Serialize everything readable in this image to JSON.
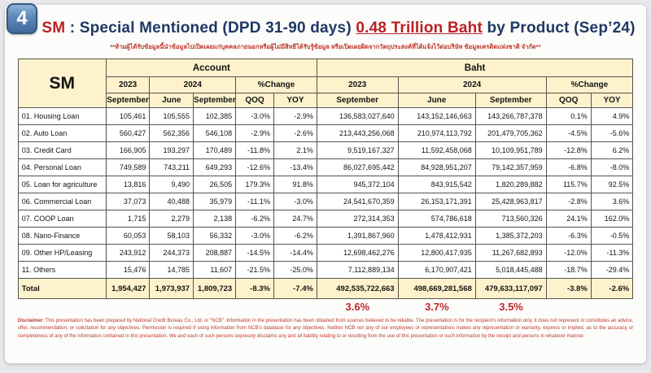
{
  "page": {
    "badge": "4",
    "title": {
      "prefix": "SM",
      "separator": " : ",
      "main": "Special Mentioned (DPD 31-90 days) ",
      "highlight": "0.48 Trillion Baht",
      "suffix": " by Product (Sep’24)"
    },
    "thai_notice": "**ห้ามผู้ได้รับข้อมูลนี้นำข้อมูลไปเปิดเผยแก่บุคคลภายนอกหรือผู้ไม่มีสิทธิได้รับรู้ข้อมูล หรือเปิดเผยผิดจากวัตถุประสงค์ที่ได้แจ้งไว้ต่อบริษัท ข้อมูลเครดิตแห่งชาติ จำกัด**"
  },
  "table": {
    "corner_label": "SM",
    "headers": {
      "account_group": "Account",
      "baht_group": "Baht",
      "y2023": "2023",
      "y2024": "2024",
      "pct_change": "%Change",
      "september": "September",
      "june": "June",
      "qoq": "QOQ",
      "yoy": "YOY"
    },
    "rows": [
      {
        "label": "01. Housing Loan",
        "account": [
          "105,461",
          "105,555",
          "102,385",
          "-3.0%",
          "-2.9%"
        ],
        "baht": [
          "136,583,027,640",
          "143,152,146,663",
          "143,266,787,378",
          "0.1%",
          "4.9%"
        ]
      },
      {
        "label": "02. Auto Loan",
        "account": [
          "560,427",
          "562,356",
          "546,108",
          "-2.9%",
          "-2.6%"
        ],
        "baht": [
          "213,443,256,068",
          "210,974,113,792",
          "201,479,705,362",
          "-4.5%",
          "-5.6%"
        ]
      },
      {
        "label": "03. Credit Card",
        "account": [
          "166,905",
          "193,297",
          "170,489",
          "-11.8%",
          "2.1%"
        ],
        "baht": [
          "9,519,167,327",
          "11,592,458,068",
          "10,109,951,789",
          "-12.8%",
          "6.2%"
        ]
      },
      {
        "label": "04. Personal Loan",
        "account": [
          "749,589",
          "743,211",
          "649,293",
          "-12.6%",
          "-13.4%"
        ],
        "baht": [
          "86,027,695,442",
          "84,928,951,207",
          "79,142,357,959",
          "-6.8%",
          "-8.0%"
        ]
      },
      {
        "label": "05. Loan for agriculture",
        "account": [
          "13,816",
          "9,490",
          "26,505",
          "179.3%",
          "91.8%"
        ],
        "baht": [
          "945,372,104",
          "843,915,542",
          "1,820,289,882",
          "115.7%",
          "92.5%"
        ]
      },
      {
        "label": "06. Commercial Loan",
        "account": [
          "37,073",
          "40,488",
          "35,979",
          "-11.1%",
          "-3.0%"
        ],
        "baht": [
          "24,541,670,359",
          "26,153,171,391",
          "25,428,963,817",
          "-2.8%",
          "3.6%"
        ]
      },
      {
        "label": "07. COOP Loan",
        "account": [
          "1,715",
          "2,279",
          "2,138",
          "-6.2%",
          "24.7%"
        ],
        "baht": [
          "272,314,353",
          "574,786,618",
          "713,560,326",
          "24.1%",
          "162.0%"
        ]
      },
      {
        "label": "08. Nano-Finance",
        "account": [
          "60,053",
          "58,103",
          "56,332",
          "-3.0%",
          "-6.2%"
        ],
        "baht": [
          "1,391,867,960",
          "1,478,412,931",
          "1,385,372,203",
          "-6.3%",
          "-0.5%"
        ]
      },
      {
        "label": "09. Other HP/Leasing",
        "account": [
          "243,912",
          "244,373",
          "208,887",
          "-14.5%",
          "-14.4%"
        ],
        "baht": [
          "12,698,462,276",
          "12,800,417,935",
          "11,267,682,893",
          "-12.0%",
          "-11.3%"
        ]
      },
      {
        "label": "11. Others",
        "account": [
          "15,476",
          "14,785",
          "11,607",
          "-21.5%",
          "-25.0%"
        ],
        "baht": [
          "7,112,889,134",
          "6,170,907,421",
          "5,018,445,488",
          "-18.7%",
          "-29.4%"
        ]
      }
    ],
    "total": {
      "label": "Total",
      "account": [
        "1,954,427",
        "1,973,937",
        "1,809,723",
        "-8.3%",
        "-7.4%"
      ],
      "baht": [
        "492,535,722,663",
        "498,669,281,568",
        "479,633,117,097",
        "-3.8%",
        "-2.6%"
      ]
    },
    "baht_share_row": [
      "3.6%",
      "3.7%",
      "3.5%"
    ]
  },
  "disclaimer": {
    "label": "Disclaimer:",
    "text": " This presentation has been prepared by National Credit Bureau Co., Ltd. or \"NCB\". Information in the presentation has been obtained from sources believed to be reliable. The presentation is for the recipient's information only, it does not represent or constitutes an advice, offer, recommendation, or solicitation for any objectives. Permission is required if using information from NCB's database for any objectives. Neither NCB nor any of our employees or representatives makes any representation or warranty, express or implied, as to the accuracy or completeness of any of the information contained in this presentation. We and each of such persons expressly disclaims any and all liability relating to or resulting from the use of this presentation or such information by the receipt and persons in whatever manner."
  },
  "colors": {
    "accent_red": "#b92025",
    "navy": "#1f3864",
    "header_cream": "#fdf2cc"
  }
}
